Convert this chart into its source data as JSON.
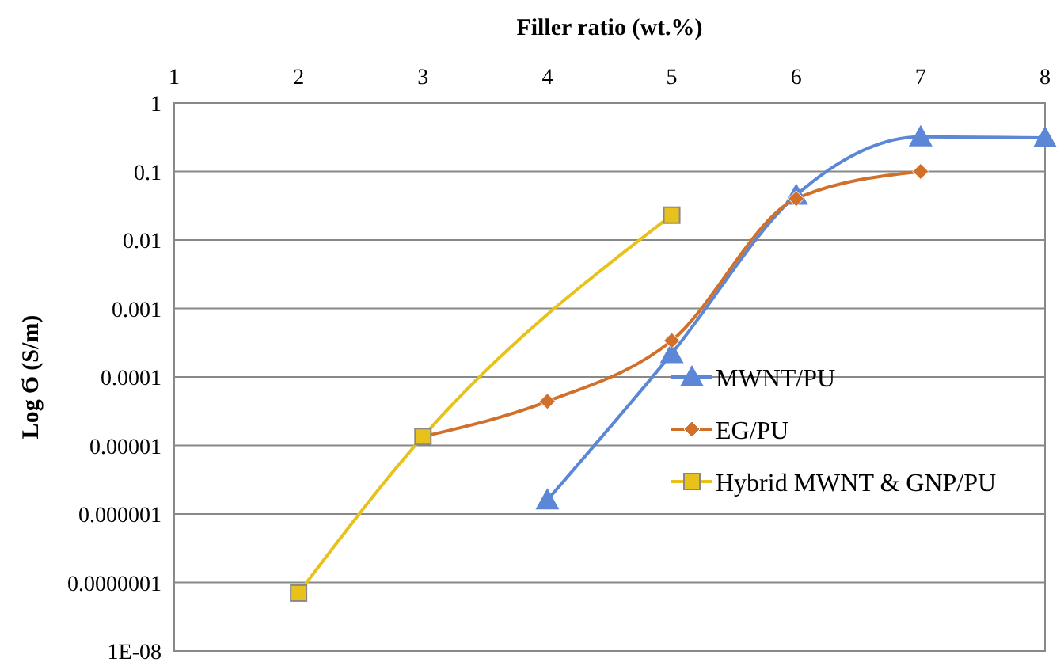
{
  "chart_data": {
    "type": "line",
    "xlabel": "Filler ratio (wt.%)",
    "ylabel": "Log Ϭ (S/m)",
    "xlim": [
      1,
      8
    ],
    "xticks": [
      1,
      2,
      3,
      4,
      5,
      6,
      7,
      8
    ],
    "ylim": [
      1e-08,
      1
    ],
    "yticks": [
      1,
      0.1,
      0.01,
      0.001,
      0.0001,
      {
        "value": 1e-05,
        "label": "0.00001"
      },
      {
        "value": 1e-06,
        "label": "0.000001"
      },
      {
        "value": 1e-07,
        "label": "0.0000001"
      },
      {
        "value": 1e-08,
        "label": "1E-08"
      }
    ],
    "log": "y",
    "grid": "y",
    "legend": "right",
    "series": [
      {
        "name": "MWNT/PU",
        "color": "#5b87d6",
        "marker": "triangle",
        "x": [
          4,
          5,
          6,
          7,
          8
        ],
        "values": [
          1.6e-06,
          0.00022,
          0.045,
          0.32,
          0.31
        ]
      },
      {
        "name": "EG/PU",
        "color": "#d0702a",
        "marker": "diamond",
        "x": [
          3,
          4,
          5,
          6,
          7
        ],
        "values": [
          1.35e-05,
          4.4e-05,
          0.00034,
          0.04,
          0.1
        ]
      },
      {
        "name": "Hybrid MWNT & GNP/PU",
        "color": "#e8c21a",
        "marker": "square",
        "x": [
          2,
          3,
          5
        ],
        "values": [
          7e-08,
          1.35e-05,
          0.023
        ]
      }
    ]
  }
}
